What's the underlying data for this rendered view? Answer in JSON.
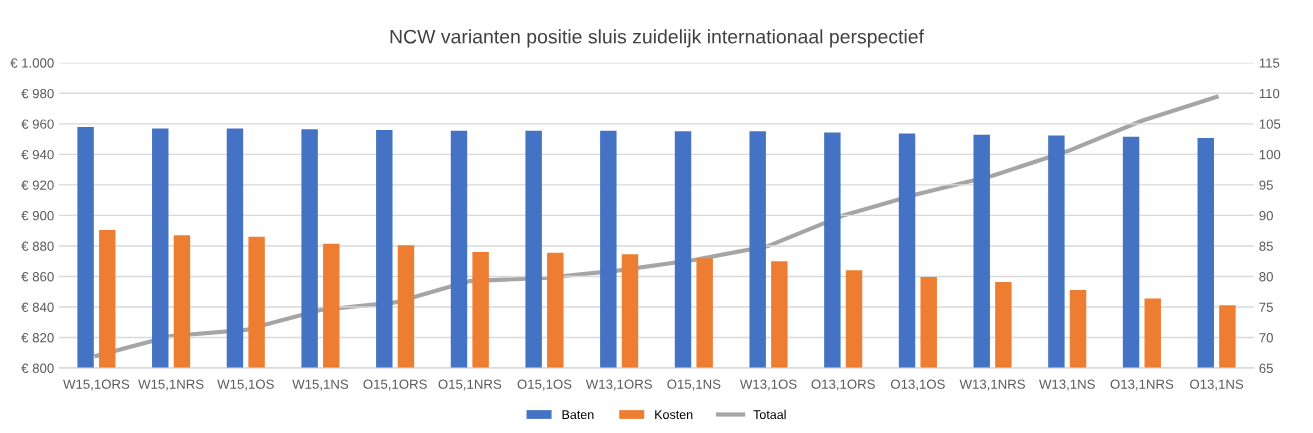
{
  "chart_data": {
    "type": "bar",
    "title": "NCW varianten positie sluis zuidelijk internationaal perspectief",
    "categories": [
      "W15,1ORS",
      "W15,1NRS",
      "W15,1OS",
      "W15,1NS",
      "O15,1ORS",
      "O15,1NRS",
      "O15,1OS",
      "W13,1ORS",
      "O15,1NS",
      "W13,1OS",
      "O13,1ORS",
      "O13,1OS",
      "W13,1NRS",
      "W13,1NS",
      "O13,1NRS",
      "O13,1NS"
    ],
    "series": [
      {
        "name": "Baten",
        "color": "#4472c4",
        "values": [
          958,
          957,
          957,
          956.5,
          956,
          955.5,
          955.5,
          955.5,
          955.2,
          955.2,
          954.4,
          953.6,
          952.8,
          952.4,
          951.6,
          950.8
        ]
      },
      {
        "name": "Kosten",
        "color": "#ed7d31",
        "values": [
          890.5,
          887,
          886,
          881.5,
          880.5,
          876,
          875.5,
          874.5,
          872,
          870,
          864,
          859.6,
          856.4,
          851.2,
          845.6,
          841.2
        ]
      },
      {
        "name": "Totaal",
        "color": "#a5a5a5",
        "type": "line",
        "axis": "y2",
        "values": [
          67,
          70.25,
          71.25,
          74.5,
          75.75,
          79.25,
          79.75,
          81,
          82.7,
          85,
          90,
          93.5,
          96.5,
          100.5,
          105.5,
          109.4
        ]
      }
    ],
    "ylim": [
      800,
      1000
    ],
    "yticks": [
      {
        "value": 800,
        "label": "€ 800"
      },
      {
        "value": 820,
        "label": "€ 820"
      },
      {
        "value": 840,
        "label": "€ 840"
      },
      {
        "value": 860,
        "label": "€ 860"
      },
      {
        "value": 880,
        "label": "€ 880"
      },
      {
        "value": 900,
        "label": "€ 900"
      },
      {
        "value": 920,
        "label": "€ 920"
      },
      {
        "value": 940,
        "label": "€ 940"
      },
      {
        "value": 960,
        "label": "€ 960"
      },
      {
        "value": 980,
        "label": "€ 980"
      },
      {
        "value": 1000,
        "label": "€ 1.000"
      }
    ],
    "y2lim": [
      65,
      115
    ],
    "y2ticks": [
      65,
      70,
      75,
      80,
      85,
      90,
      95,
      100,
      105,
      110,
      115
    ],
    "grid": "y",
    "legend": "bottom"
  }
}
